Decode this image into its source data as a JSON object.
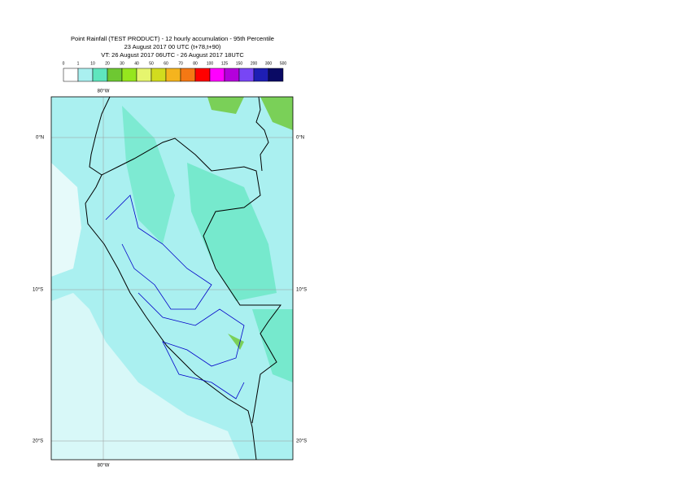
{
  "header": {
    "lines": [
      "Point Rainfall (TEST PRODUCT) - 12 hourly accumulation - 95th Percentile",
      "23 August 2017 00 UTC (t+78,t+90)",
      "VT: 26 August 2017 06UTC - 26 August 2017 18UTC"
    ]
  },
  "legend": {
    "labels": [
      "0",
      "1",
      "10",
      "20",
      "30",
      "40",
      "50",
      "60",
      "70",
      "80",
      "100",
      "125",
      "150",
      "200",
      "300",
      "500"
    ],
    "colors": [
      "#ffffff",
      "#aaf0f0",
      "#5fe6be",
      "#6ec832",
      "#96e61e",
      "#e6f56e",
      "#d2dc1e",
      "#f5b41e",
      "#f57814",
      "#ff0000",
      "#ff00ff",
      "#b400dc",
      "#7846f5",
      "#1e1eb4",
      "#0a0a64"
    ]
  },
  "map": {
    "lat_labels": [
      "0°N",
      "10°S",
      "20°S"
    ],
    "lon_label": "80°W"
  }
}
